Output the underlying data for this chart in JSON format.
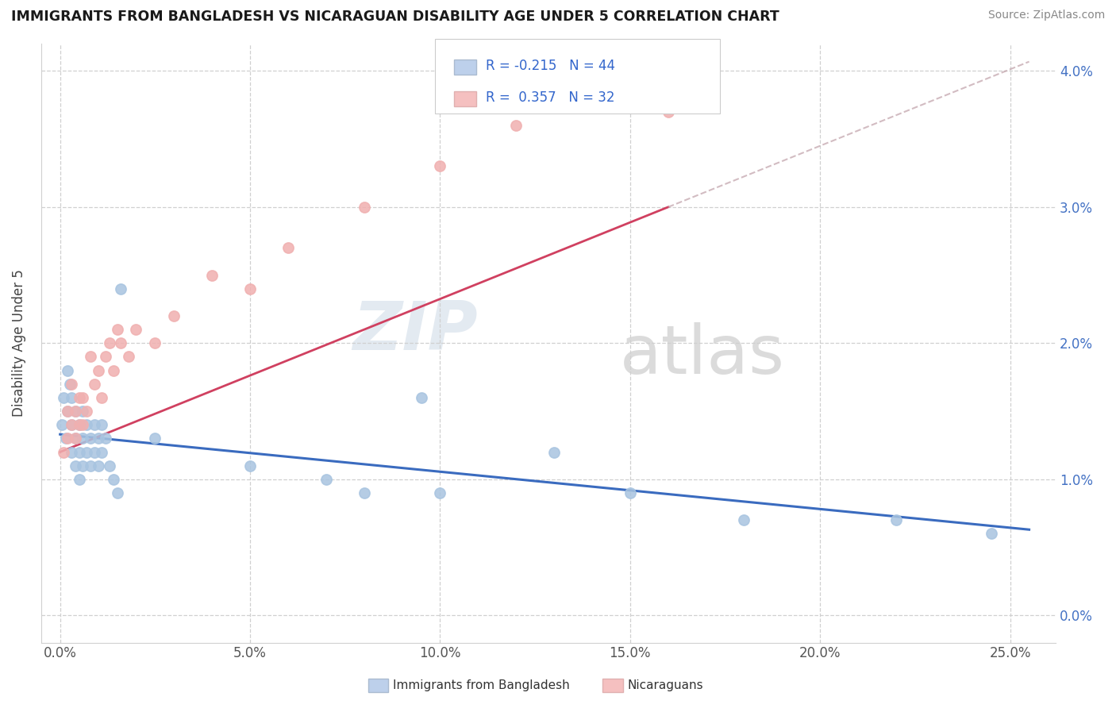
{
  "title": "IMMIGRANTS FROM BANGLADESH VS NICARAGUAN DISABILITY AGE UNDER 5 CORRELATION CHART",
  "source": "Source: ZipAtlas.com",
  "ylabel": "Disability Age Under 5",
  "xticklabels": [
    "0.0%",
    "5.0%",
    "10.0%",
    "15.0%",
    "20.0%",
    "25.0%"
  ],
  "xticks": [
    0.0,
    0.05,
    0.1,
    0.15,
    0.2,
    0.25
  ],
  "yticklabels": [
    "0.0%",
    "1.0%",
    "2.0%",
    "3.0%",
    "4.0%"
  ],
  "yticks": [
    0.0,
    0.01,
    0.02,
    0.03,
    0.04
  ],
  "xlim": [
    -0.005,
    0.262
  ],
  "ylim": [
    -0.002,
    0.042
  ],
  "R_bangladesh": -0.215,
  "N_bangladesh": 44,
  "R_nicaraguan": 0.357,
  "N_nicaraguan": 32,
  "legend_labels": [
    "Immigrants from Bangladesh",
    "Nicaraguans"
  ],
  "watermark_zip": "ZIP",
  "watermark_atlas": "atlas",
  "blue_scatter": "#a8c4e0",
  "pink_scatter": "#f0b0b0",
  "blue_line": "#3a6bbf",
  "pink_line": "#d04060",
  "pink_dashed": "#e08090",
  "ytick_color": "#4472c4",
  "xtick_color": "#555555",
  "grid_color": "#d0d0d0",
  "legend_blue_fill": "#bdd0eb",
  "legend_pink_fill": "#f5c0c0",
  "bangladesh_x": [
    0.0005,
    0.001,
    0.0015,
    0.002,
    0.002,
    0.0025,
    0.003,
    0.003,
    0.003,
    0.004,
    0.004,
    0.004,
    0.005,
    0.005,
    0.005,
    0.006,
    0.006,
    0.006,
    0.007,
    0.007,
    0.008,
    0.008,
    0.009,
    0.009,
    0.01,
    0.01,
    0.011,
    0.011,
    0.012,
    0.013,
    0.014,
    0.015,
    0.016,
    0.025,
    0.05,
    0.07,
    0.08,
    0.095,
    0.1,
    0.13,
    0.15,
    0.18,
    0.22,
    0.245
  ],
  "bangladesh_y": [
    0.014,
    0.016,
    0.013,
    0.018,
    0.015,
    0.017,
    0.016,
    0.014,
    0.012,
    0.015,
    0.013,
    0.011,
    0.014,
    0.012,
    0.01,
    0.013,
    0.011,
    0.015,
    0.014,
    0.012,
    0.013,
    0.011,
    0.014,
    0.012,
    0.013,
    0.011,
    0.014,
    0.012,
    0.013,
    0.011,
    0.01,
    0.009,
    0.024,
    0.013,
    0.011,
    0.01,
    0.009,
    0.016,
    0.009,
    0.012,
    0.009,
    0.007,
    0.007,
    0.006
  ],
  "nicaraguan_x": [
    0.001,
    0.002,
    0.002,
    0.003,
    0.003,
    0.004,
    0.004,
    0.005,
    0.005,
    0.006,
    0.006,
    0.007,
    0.008,
    0.009,
    0.01,
    0.011,
    0.012,
    0.013,
    0.014,
    0.015,
    0.016,
    0.018,
    0.02,
    0.025,
    0.03,
    0.04,
    0.05,
    0.06,
    0.08,
    0.1,
    0.12,
    0.16
  ],
  "nicaraguan_y": [
    0.012,
    0.015,
    0.013,
    0.014,
    0.017,
    0.013,
    0.015,
    0.014,
    0.016,
    0.014,
    0.016,
    0.015,
    0.019,
    0.017,
    0.018,
    0.016,
    0.019,
    0.02,
    0.018,
    0.021,
    0.02,
    0.019,
    0.021,
    0.02,
    0.022,
    0.025,
    0.024,
    0.027,
    0.03,
    0.033,
    0.036,
    0.037
  ]
}
